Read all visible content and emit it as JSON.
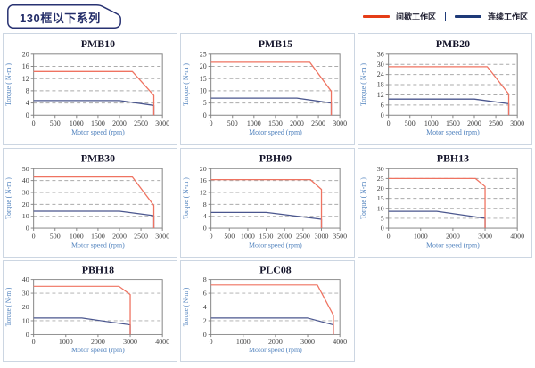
{
  "header": {
    "title": "130框以下系列"
  },
  "legend": {
    "intermittent_label": "间歇工作区",
    "continuous_label": "连续工作区",
    "intermittent_color": "#e53d17",
    "continuous_color": "#1e3a78"
  },
  "colors": {
    "tag_border": "#283272",
    "cell_border": "#ccd6e2",
    "curve_red": "#ef7361",
    "curve_blue": "#4a568e"
  },
  "chart_data": {
    "type": "line",
    "xlabel": "Motor speed (rpm)",
    "ylabel": "Torque ( N-m )",
    "grid": "dashed-horizontal",
    "legend_position": "top-right",
    "series_names": [
      "间歇工作区",
      "连续工作区"
    ],
    "charts": [
      {
        "title": "PMB10",
        "xlim": [
          0,
          3000
        ],
        "xtick_step": 500,
        "ylim": [
          0,
          20
        ],
        "ytick_step": 4,
        "series": [
          {
            "name": "间歇工作区",
            "color": "#ef7361",
            "points": [
              [
                0,
                14.3
              ],
              [
                2300,
                14.3
              ],
              [
                2800,
                6.5
              ],
              [
                2800,
                0
              ]
            ]
          },
          {
            "name": "连续工作区",
            "color": "#4a568e",
            "points": [
              [
                0,
                4.8
              ],
              [
                2000,
                4.8
              ],
              [
                2800,
                3.2
              ],
              [
                2800,
                0
              ]
            ]
          }
        ]
      },
      {
        "title": "PMB15",
        "xlim": [
          0,
          3000
        ],
        "xtick_step": 500,
        "ylim": [
          0,
          25
        ],
        "ytick_step": 5,
        "series": [
          {
            "name": "间歇工作区",
            "color": "#ef7361",
            "points": [
              [
                0,
                21.7
              ],
              [
                2300,
                21.7
              ],
              [
                2800,
                9.8
              ],
              [
                2800,
                0
              ]
            ]
          },
          {
            "name": "连续工作区",
            "color": "#4a568e",
            "points": [
              [
                0,
                7
              ],
              [
                2000,
                7
              ],
              [
                2800,
                5
              ],
              [
                2800,
                0
              ]
            ]
          }
        ]
      },
      {
        "title": "PMB20",
        "xlim": [
          0,
          3000
        ],
        "xtick_step": 500,
        "ylim": [
          0,
          36
        ],
        "ytick_step": 6,
        "series": [
          {
            "name": "间歇工作区",
            "color": "#ef7361",
            "points": [
              [
                0,
                28.6
              ],
              [
                2300,
                28.6
              ],
              [
                2800,
                12.5
              ],
              [
                2800,
                0
              ]
            ]
          },
          {
            "name": "连续工作区",
            "color": "#4a568e",
            "points": [
              [
                0,
                9.5
              ],
              [
                2000,
                9.5
              ],
              [
                2800,
                6.8
              ],
              [
                2800,
                0
              ]
            ]
          }
        ]
      },
      {
        "title": "PMB30",
        "xlim": [
          0,
          3000
        ],
        "xtick_step": 500,
        "ylim": [
          0,
          50
        ],
        "ytick_step": 10,
        "series": [
          {
            "name": "间歇工作区",
            "color": "#ef7361",
            "points": [
              [
                0,
                43
              ],
              [
                2300,
                43
              ],
              [
                2800,
                19
              ],
              [
                2800,
                0
              ]
            ]
          },
          {
            "name": "连续工作区",
            "color": "#4a568e",
            "points": [
              [
                0,
                14.3
              ],
              [
                2000,
                14.3
              ],
              [
                2800,
                10.5
              ],
              [
                2800,
                0
              ]
            ]
          }
        ]
      },
      {
        "title": "PBH09",
        "xlim": [
          0,
          3500
        ],
        "xtick_step": 500,
        "ylim": [
          0,
          20
        ],
        "ytick_step": 4,
        "series": [
          {
            "name": "间歇工作区",
            "color": "#ef7361",
            "points": [
              [
                0,
                16.3
              ],
              [
                2700,
                16.3
              ],
              [
                3000,
                13
              ],
              [
                3000,
                0
              ]
            ]
          },
          {
            "name": "连续工作区",
            "color": "#4a568e",
            "points": [
              [
                0,
                5.3
              ],
              [
                1500,
                5.3
              ],
              [
                3000,
                3
              ],
              [
                3000,
                0
              ]
            ]
          }
        ]
      },
      {
        "title": "PBH13",
        "xlim": [
          0,
          4000
        ],
        "xtick_step": 1000,
        "ylim": [
          0,
          30
        ],
        "ytick_step": 5,
        "series": [
          {
            "name": "间歇工作区",
            "color": "#ef7361",
            "points": [
              [
                0,
                25
              ],
              [
                2700,
                25
              ],
              [
                3000,
                21
              ],
              [
                3000,
                0
              ]
            ]
          },
          {
            "name": "连续工作区",
            "color": "#4a568e",
            "points": [
              [
                0,
                8.5
              ],
              [
                1500,
                8.5
              ],
              [
                3000,
                5
              ],
              [
                3000,
                0
              ]
            ]
          }
        ]
      },
      {
        "title": "PBH18",
        "xlim": [
          0,
          4000
        ],
        "xtick_step": 1000,
        "ylim": [
          0,
          40
        ],
        "ytick_step": 10,
        "series": [
          {
            "name": "间歇工作区",
            "color": "#ef7361",
            "points": [
              [
                0,
                35
              ],
              [
                2650,
                35
              ],
              [
                3000,
                29
              ],
              [
                3000,
                0
              ]
            ]
          },
          {
            "name": "连续工作区",
            "color": "#4a568e",
            "points": [
              [
                0,
                12
              ],
              [
                1500,
                12
              ],
              [
                3000,
                7
              ],
              [
                3000,
                0
              ]
            ]
          }
        ]
      },
      {
        "title": "PLC08",
        "xlim": [
          0,
          4000
        ],
        "xtick_step": 1000,
        "ylim": [
          0,
          8
        ],
        "ytick_step": 2,
        "series": [
          {
            "name": "间歇工作区",
            "color": "#ef7361",
            "points": [
              [
                0,
                7.2
              ],
              [
                3300,
                7.2
              ],
              [
                3800,
                2.8
              ],
              [
                3800,
                0
              ]
            ]
          },
          {
            "name": "连续工作区",
            "color": "#4a568e",
            "points": [
              [
                0,
                2.4
              ],
              [
                3000,
                2.4
              ],
              [
                3800,
                1.4
              ],
              [
                3800,
                0
              ]
            ]
          }
        ]
      }
    ]
  }
}
